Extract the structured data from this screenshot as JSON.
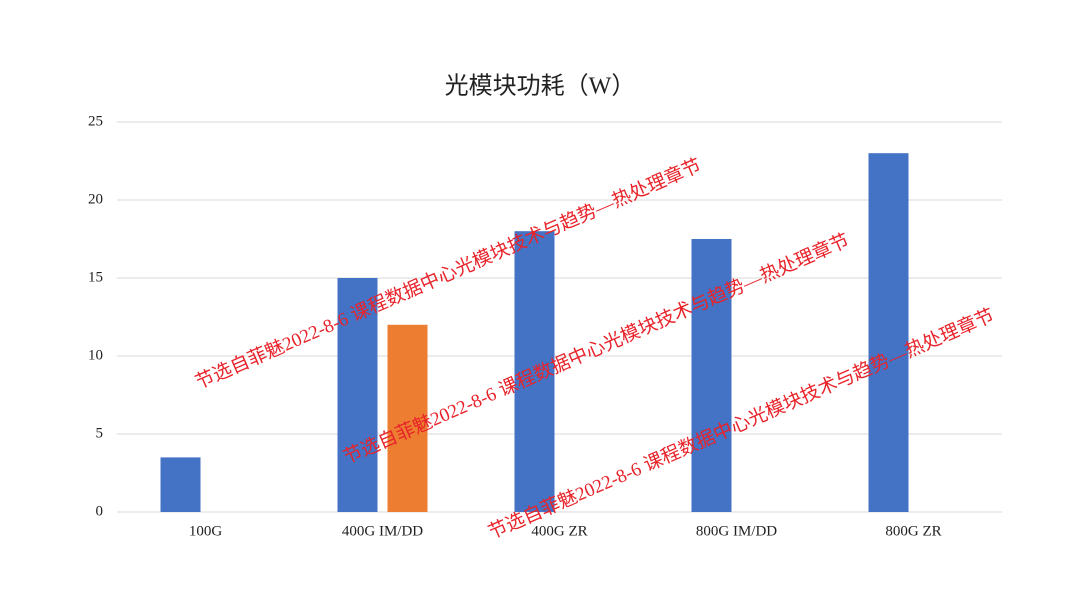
{
  "chart_data": {
    "type": "bar",
    "title": "光模块功耗（W）",
    "categories": [
      "100G",
      "400G IM/DD",
      "400G ZR",
      "800G IM/DD",
      "800G ZR"
    ],
    "series": [
      {
        "color": "#4472c4",
        "values": [
          3.5,
          15,
          18,
          17.5,
          23
        ]
      },
      {
        "color": "#ed7d31",
        "values": [
          null,
          12,
          null,
          null,
          null
        ]
      }
    ],
    "ylim": [
      0,
      25
    ],
    "yticks": [
      0,
      5,
      10,
      15,
      20,
      25
    ],
    "grid": true,
    "annotations": [
      "节选自菲魅2022-8-6  课程数据中心光模块技术与趋势—热处理章节",
      "节选自菲魅2022-8-6  课程数据中心光模块技术与趋势—热处理章节",
      "节选自菲魅2022-8-6  课程数据中心光模块技术与趋势—热处理章节"
    ]
  }
}
